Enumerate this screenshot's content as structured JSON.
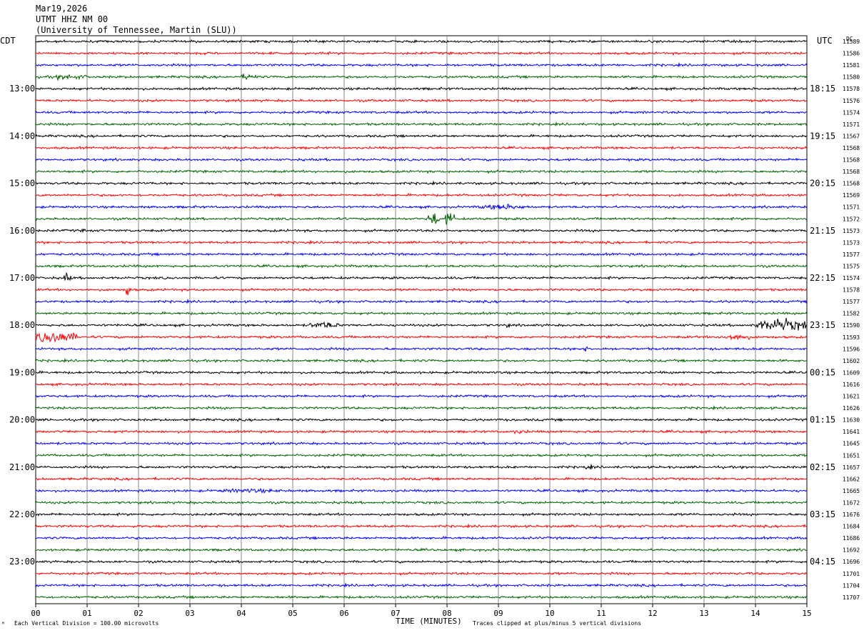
{
  "header": {
    "date": "Mar19,2026",
    "station": "UTMT HHZ NM 00",
    "institution": "(University of Tennessee, Martin (SLU))"
  },
  "left_tz": "CDT",
  "right_tz": "UTC",
  "dc_header": "DC",
  "left_times": [
    "13:00",
    "14:00",
    "15:00",
    "16:00",
    "17:00",
    "18:00",
    "19:00",
    "20:00",
    "21:00",
    "22:00",
    "23:00"
  ],
  "right_times": [
    "18:15",
    "19:15",
    "20:15",
    "21:15",
    "22:15",
    "23:15",
    "00:15",
    "01:15",
    "02:15",
    "03:15",
    "04:15"
  ],
  "footer": {
    "scale_note": "Each Vertical Division =  100.00 microvolts",
    "xlabel": "TIME (MINUTES)",
    "clip_note": "Traces clipped at plus/minus 5 vertical divisions"
  },
  "chart_data": {
    "type": "line",
    "title": "UTMT HHZ NM 00",
    "xlabel": "TIME (MINUTES)",
    "xlim": [
      0,
      15
    ],
    "x_ticks": [
      "00",
      "01",
      "02",
      "03",
      "04",
      "05",
      "06",
      "07",
      "08",
      "09",
      "10",
      "11",
      "12",
      "13",
      "14",
      "15"
    ],
    "trace_colors": [
      "#000000",
      "#ff0000",
      "#0000ff",
      "#006400"
    ],
    "grid": true,
    "dc_values": [
      "11589",
      "11586",
      "11581",
      "11580",
      "11578",
      "11576",
      "11574",
      "11571",
      "11567",
      "11568",
      "11568",
      "11568",
      "11568",
      "11569",
      "11571",
      "11572",
      "11573",
      "11573",
      "11577",
      "11575",
      "11574",
      "11578",
      "11577",
      "11582",
      "11590",
      "11593",
      "11596",
      "11602",
      "11609",
      "11616",
      "11621",
      "11626",
      "11630",
      "11641",
      "11645",
      "11651",
      "11657",
      "11662",
      "11665",
      "11672",
      "11676",
      "11684",
      "11686",
      "11692",
      "11696",
      "11701",
      "11704",
      "11707"
    ],
    "events": [
      {
        "trace": 3,
        "start_min": 0.3,
        "end_min": 1.0,
        "amp": 2
      },
      {
        "trace": 3,
        "start_min": 4.0,
        "end_min": 4.3,
        "amp": 2.5
      },
      {
        "trace": 14,
        "start_min": 8.6,
        "end_min": 9.6,
        "amp": 2
      },
      {
        "trace": 15,
        "start_min": 7.6,
        "end_min": 7.85,
        "amp": 5
      },
      {
        "trace": 15,
        "start_min": 7.95,
        "end_min": 8.15,
        "amp": 5
      },
      {
        "trace": 16,
        "start_min": 0.9,
        "end_min": 1.0,
        "amp": 1.5
      },
      {
        "trace": 20,
        "start_min": 0.5,
        "end_min": 0.7,
        "amp": 3
      },
      {
        "trace": 21,
        "start_min": 1.75,
        "end_min": 1.85,
        "amp": 5
      },
      {
        "trace": 24,
        "start_min": 5.3,
        "end_min": 5.9,
        "amp": 2.5
      },
      {
        "trace": 24,
        "start_min": 9.1,
        "end_min": 9.3,
        "amp": 1.5
      },
      {
        "trace": 24,
        "start_min": 14.0,
        "end_min": 15.0,
        "amp": 4.5
      },
      {
        "trace": 25,
        "start_min": 0.0,
        "end_min": 0.8,
        "amp": 4.5
      },
      {
        "trace": 25,
        "start_min": 13.3,
        "end_min": 13.9,
        "amp": 2.5
      },
      {
        "trace": 26,
        "start_min": 10.5,
        "end_min": 10.9,
        "amp": 1.5
      },
      {
        "trace": 33,
        "start_min": 9.2,
        "end_min": 9.6,
        "amp": 1.5
      },
      {
        "trace": 33,
        "start_min": 10.2,
        "end_min": 10.5,
        "amp": 1
      },
      {
        "trace": 33,
        "start_min": 11.7,
        "end_min": 12.0,
        "amp": 1
      },
      {
        "trace": 36,
        "start_min": 10.6,
        "end_min": 10.9,
        "amp": 1.5
      },
      {
        "trace": 38,
        "start_min": 3.4,
        "end_min": 4.9,
        "amp": 1.5
      }
    ]
  }
}
